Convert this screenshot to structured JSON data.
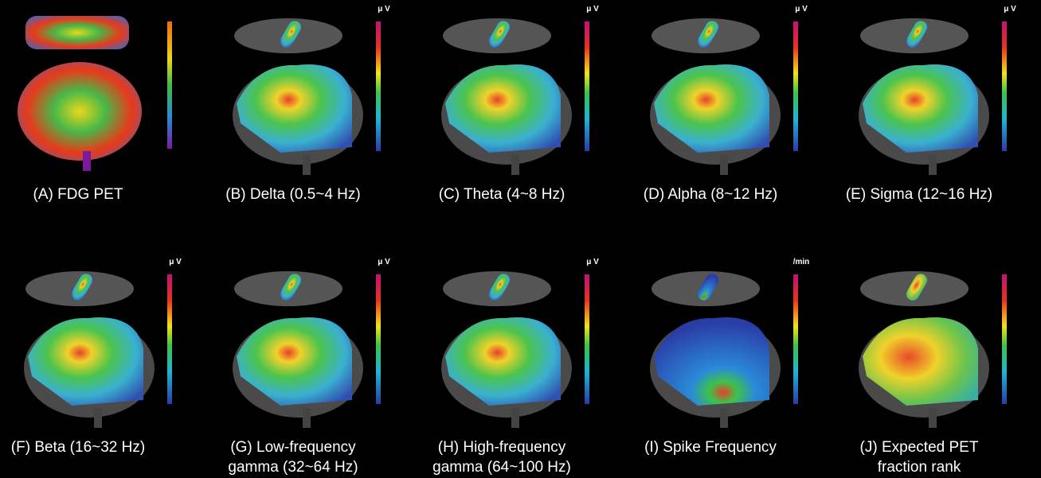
{
  "panels": [
    {
      "caption": [
        "(A) FDG PET"
      ]
    },
    {
      "caption": [
        "(B) Delta (0.5~4 Hz)"
      ],
      "unit": "μ V"
    },
    {
      "caption": [
        "(C) Theta (4~8 Hz)"
      ],
      "unit": "μ V"
    },
    {
      "caption": [
        "(D) Alpha (8~12 Hz)"
      ],
      "unit": "μ V"
    },
    {
      "caption": [
        "(E) Sigma (12~16 Hz)"
      ],
      "unit": "μ V"
    },
    {
      "caption": [
        "(F) Beta (16~32 Hz)"
      ],
      "unit": "μ V"
    },
    {
      "caption": [
        "(G) Low-frequency",
        "gamma (32~64 Hz)"
      ],
      "unit": "μ V"
    },
    {
      "caption": [
        "(H) High-frequency",
        "gamma (64~100 Hz)"
      ],
      "unit": "μ V"
    },
    {
      "caption": [
        "(I) Spike Frequency"
      ],
      "unit": "/min"
    },
    {
      "caption": [
        "(J) Expected PET",
        "fraction rank"
      ]
    }
  ]
}
